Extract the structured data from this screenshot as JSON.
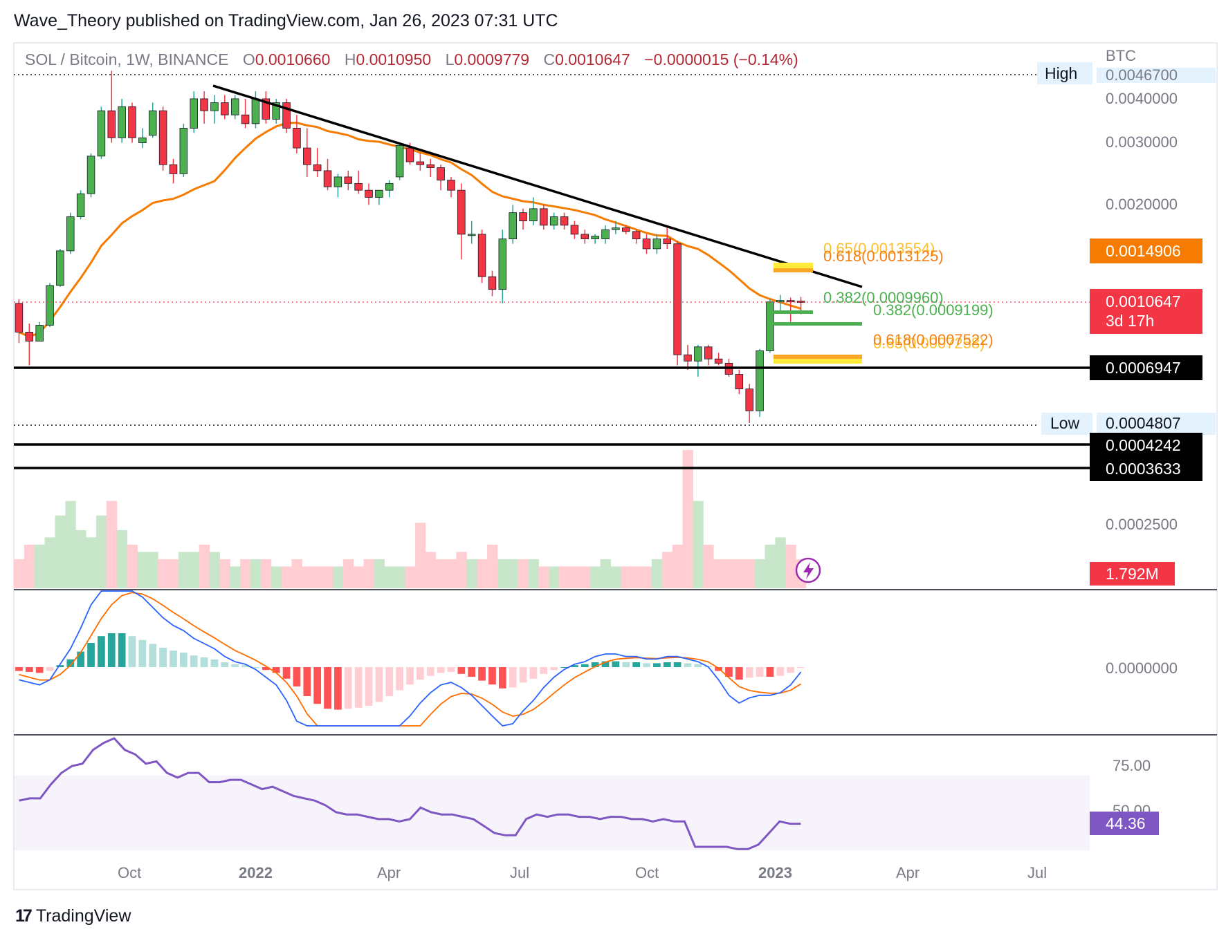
{
  "header": {
    "published": "Wave_Theory published on TradingView.com, Jan 26, 2023 07:31 UTC"
  },
  "legend": {
    "symbol": "SOL / Bitcoin, 1W, BINANCE",
    "o_label": "O",
    "o_value": "0.0010660",
    "h_label": "H",
    "h_value": "0.0010950",
    "l_label": "L",
    "l_value": "0.0009779",
    "c_label": "C",
    "c_value": "0.0010647",
    "change": "−0.0000015 (−0.14%)"
  },
  "footer": {
    "brand": "TradingView"
  },
  "colors": {
    "up": "#26a69a",
    "up_body": "#4caf50",
    "down": "#f23645",
    "ma": "#f57c00",
    "macd": "#2962ff",
    "signal": "#ff6d00",
    "rsi": "#7e57c2",
    "fib_green": "#4caf50",
    "fib_gold": "#f9a825",
    "fib_yellow": "#ffeb3b"
  },
  "chart_data": [
    {
      "type": "candlestick",
      "title": "SOL / Bitcoin, 1W, BINANCE",
      "yunit": "BTC",
      "yscale": "log",
      "x_ticks": [
        "Oct",
        "2022",
        "Apr",
        "Jul",
        "Oct",
        "2023",
        "Apr",
        "Jul"
      ],
      "y_ticks": [
        "0.0040000",
        "0.0030000",
        "0.0020000",
        "0.0002500",
        "0.0000000"
      ],
      "candles_ohlc_approx": [
        [
          0.00105,
          0.00108,
          0.00081,
          0.00087
        ],
        [
          0.00087,
          0.00092,
          0.0007,
          0.00082
        ],
        [
          0.00082,
          0.00093,
          0.00082,
          0.00091
        ],
        [
          0.00091,
          0.0012,
          0.0009,
          0.00118
        ],
        [
          0.00118,
          0.0015,
          0.00117,
          0.00148
        ],
        [
          0.00148,
          0.0019,
          0.00145,
          0.00185
        ],
        [
          0.00185,
          0.0022,
          0.00182,
          0.00215
        ],
        [
          0.00215,
          0.0028,
          0.0021,
          0.00275
        ],
        [
          0.00275,
          0.0038,
          0.0027,
          0.0037
        ],
        [
          0.0037,
          0.0048,
          0.003,
          0.0031
        ],
        [
          0.0031,
          0.004,
          0.003,
          0.0038
        ],
        [
          0.0038,
          0.0039,
          0.003,
          0.0031
        ],
        [
          0.003,
          0.0033,
          0.0029,
          0.0031
        ],
        [
          0.00315,
          0.0039,
          0.0031,
          0.0037
        ],
        [
          0.0037,
          0.0038,
          0.0025,
          0.0026
        ],
        [
          0.0026,
          0.0027,
          0.0023,
          0.00245
        ],
        [
          0.00245,
          0.0034,
          0.0024,
          0.0033
        ],
        [
          0.0033,
          0.0042,
          0.0032,
          0.004
        ],
        [
          0.004,
          0.0042,
          0.0034,
          0.0037
        ],
        [
          0.0037,
          0.0041,
          0.0034,
          0.0039
        ],
        [
          0.0039,
          0.0041,
          0.0035,
          0.0036
        ],
        [
          0.0036,
          0.0041,
          0.0035,
          0.004
        ],
        [
          0.0036,
          0.004,
          0.0033,
          0.0034
        ],
        [
          0.0034,
          0.0042,
          0.0033,
          0.004
        ],
        [
          0.004,
          0.0042,
          0.0034,
          0.0035
        ],
        [
          0.0035,
          0.004,
          0.0034,
          0.0039
        ],
        [
          0.0039,
          0.004,
          0.0032,
          0.0033
        ],
        [
          0.0033,
          0.0036,
          0.0028,
          0.0029
        ],
        [
          0.0029,
          0.0033,
          0.0024,
          0.0026
        ],
        [
          0.0026,
          0.0029,
          0.0024,
          0.0025
        ],
        [
          0.0025,
          0.0027,
          0.0022,
          0.00225
        ],
        [
          0.00225,
          0.00245,
          0.0021,
          0.0024
        ],
        [
          0.0024,
          0.0025,
          0.0022,
          0.0023
        ],
        [
          0.0023,
          0.0025,
          0.00215,
          0.0022
        ],
        [
          0.0022,
          0.0023,
          0.002,
          0.0021
        ],
        [
          0.0021,
          0.0022,
          0.002,
          0.0022
        ],
        [
          0.0022,
          0.00235,
          0.0021,
          0.0023
        ],
        [
          0.0024,
          0.003,
          0.00235,
          0.00295
        ],
        [
          0.0029,
          0.003,
          0.0026,
          0.00265
        ],
        [
          0.00265,
          0.0028,
          0.0025,
          0.0026
        ],
        [
          0.0026,
          0.0027,
          0.0024,
          0.00255
        ],
        [
          0.00255,
          0.0026,
          0.0022,
          0.00235
        ],
        [
          0.00235,
          0.0024,
          0.0021,
          0.0022
        ],
        [
          0.0022,
          0.0023,
          0.0014,
          0.00165
        ],
        [
          0.00165,
          0.0018,
          0.00155,
          0.00165
        ],
        [
          0.00165,
          0.0017,
          0.0012,
          0.00125
        ],
        [
          0.00125,
          0.0013,
          0.0011,
          0.00115
        ],
        [
          0.00115,
          0.0017,
          0.00105,
          0.0016
        ],
        [
          0.0016,
          0.002,
          0.00155,
          0.0019
        ],
        [
          0.0019,
          0.00195,
          0.0017,
          0.0018
        ],
        [
          0.0018,
          0.0021,
          0.00175,
          0.00195
        ],
        [
          0.00195,
          0.002,
          0.0017,
          0.00175
        ],
        [
          0.00175,
          0.0019,
          0.0017,
          0.00185
        ],
        [
          0.00185,
          0.0019,
          0.0017,
          0.00175
        ],
        [
          0.00175,
          0.0018,
          0.0016,
          0.00165
        ],
        [
          0.00165,
          0.0017,
          0.00155,
          0.0016
        ],
        [
          0.0016,
          0.00165,
          0.00155,
          0.00163
        ],
        [
          0.0016,
          0.00175,
          0.00155,
          0.0017
        ],
        [
          0.0017,
          0.0018,
          0.00165,
          0.00172
        ],
        [
          0.00172,
          0.00175,
          0.00165,
          0.00168
        ],
        [
          0.00168,
          0.0017,
          0.00155,
          0.0016
        ],
        [
          0.0016,
          0.00165,
          0.00145,
          0.0015
        ],
        [
          0.0015,
          0.00165,
          0.00145,
          0.0016
        ],
        [
          0.0016,
          0.00175,
          0.0015,
          0.00155
        ],
        [
          0.00155,
          0.00158,
          0.0007,
          0.00075
        ],
        [
          0.00075,
          0.0008,
          0.00068,
          0.00072
        ],
        [
          0.00072,
          0.0008,
          0.00065,
          0.00079
        ],
        [
          0.00079,
          0.0008,
          0.0007,
          0.00073
        ],
        [
          0.00073,
          0.00076,
          0.0007,
          0.00071
        ],
        [
          0.00071,
          0.00073,
          0.00065,
          0.00066
        ],
        [
          0.00066,
          0.00068,
          0.00058,
          0.0006
        ],
        [
          0.0006,
          0.00062,
          0.00048,
          0.00052
        ],
        [
          0.00052,
          0.00078,
          0.0005,
          0.00077
        ],
        [
          0.00077,
          0.00108,
          0.00076,
          0.00106
        ],
        [
          0.00106,
          0.00111,
          0.00098,
          0.00107
        ],
        [
          0.00107,
          0.00109,
          0.00093,
          0.00106
        ],
        [
          0.001066,
          0.001095,
          0.0009779,
          0.0010647
        ]
      ],
      "series": [
        {
          "name": "MA",
          "values_note": "smooth moving average overlay"
        }
      ],
      "price_labels": [
        {
          "label": "High",
          "value": "0.0046700"
        },
        {
          "label": "",
          "value": "0.0014906"
        },
        {
          "label": "",
          "value": "0.0010647",
          "sub": "3d 17h"
        },
        {
          "label": "",
          "value": "0.0006947"
        },
        {
          "label": "Low",
          "value": "0.0004807"
        },
        {
          "label": "",
          "value": "0.0004242"
        },
        {
          "label": "",
          "value": "0.0003633"
        },
        {
          "label": "",
          "value": "1.792M"
        }
      ],
      "fib_labels": {
        "top_a": "0.65(0.0013554)",
        "top_b": "0.618(0.0013125)",
        "mid_a": "0.382(0.0009960)",
        "mid_b": "0.382(0.0009199)",
        "low_a": "0.618(0.0007522)",
        "low_b": "0.65(0.0007258)"
      }
    },
    {
      "type": "area",
      "title": "Volume",
      "values": [
        4,
        6,
        6,
        7,
        10,
        12,
        8,
        7,
        10,
        12,
        8,
        6,
        5,
        5,
        4,
        4,
        5,
        5,
        6,
        5,
        4,
        3,
        4,
        4,
        4,
        3,
        3,
        4,
        3,
        3,
        3,
        3,
        4,
        3,
        4,
        4,
        3,
        3,
        3,
        9,
        5,
        4,
        4,
        5,
        4,
        4,
        6,
        4,
        4,
        4,
        4,
        3,
        3,
        3,
        3,
        3,
        3,
        4,
        3,
        3,
        3,
        3,
        4,
        5,
        6,
        19,
        12,
        6,
        4,
        4,
        4,
        4,
        4,
        6,
        7,
        6,
        4,
        4
      ]
    },
    {
      "type": "bar",
      "title": "MACD",
      "y_ticks": [
        "0.0000000"
      ],
      "values": [
        -0.4,
        -0.5,
        -0.6,
        -0.4,
        0.2,
        0.8,
        1.6,
        2.5,
        3.2,
        3.5,
        3.5,
        3.2,
        2.8,
        2.4,
        2.0,
        1.7,
        1.5,
        1.2,
        1.0,
        0.8,
        0.5,
        0.3,
        0.2,
        0,
        -0.3,
        -0.6,
        -1.2,
        -2.0,
        -3.0,
        -3.8,
        -4.3,
        -4.4,
        -4.3,
        -4.2,
        -4.0,
        -3.6,
        -3.0,
        -2.4,
        -1.8,
        -1.3,
        -0.9,
        -0.6,
        -0.5,
        -0.7,
        -1.0,
        -1.4,
        -1.8,
        -2.2,
        -2.1,
        -1.6,
        -1.2,
        -0.7,
        -0.3,
        0.0,
        0.2,
        0.3,
        0.5,
        0.6,
        0.6,
        0.5,
        0.5,
        0.4,
        0.4,
        0.5,
        0.5,
        0.4,
        0.3,
        0.1,
        -0.4,
        -1.0,
        -1.3,
        -1.1,
        -1.0,
        -1.0,
        -0.9,
        -0.6,
        -0.1,
        0.3,
        0.6,
        0.6
      ]
    },
    {
      "type": "line",
      "title": "RSI",
      "y_ticks": [
        "75.00",
        "50.00"
      ],
      "current_label": "44.36",
      "values": [
        55,
        56,
        56,
        62,
        67,
        70,
        71,
        77,
        80,
        82,
        77,
        75,
        71,
        72,
        67,
        65,
        67,
        67,
        63,
        63,
        64,
        64,
        62,
        60,
        61,
        59,
        57,
        56,
        55,
        53,
        50,
        49,
        49,
        48,
        47,
        47,
        46,
        47,
        52,
        50,
        49,
        49,
        48,
        47,
        44,
        41,
        40,
        40,
        47,
        49,
        48,
        49,
        49,
        48,
        48,
        47,
        48,
        48,
        47,
        47,
        46,
        47,
        46,
        46,
        35,
        35,
        35,
        35,
        34,
        34,
        36,
        41,
        46,
        45,
        45
      ]
    }
  ]
}
